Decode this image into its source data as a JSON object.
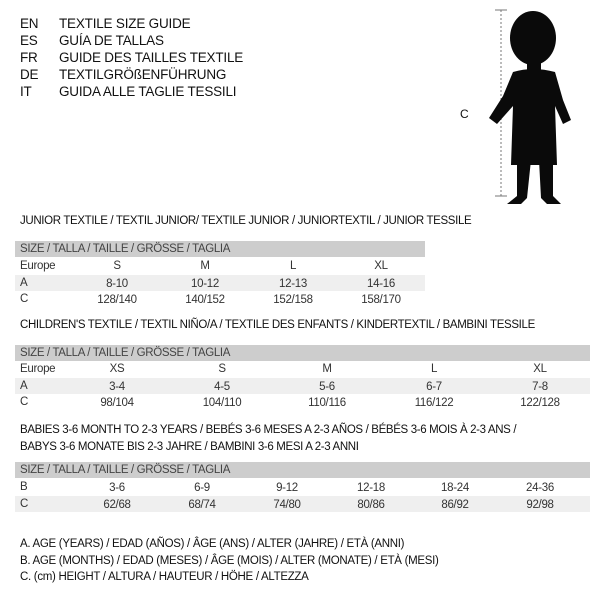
{
  "languages": [
    {
      "code": "EN",
      "text": "TEXTILE SIZE GUIDE"
    },
    {
      "code": "ES",
      "text": "GUÍA DE TALLAS"
    },
    {
      "code": "FR",
      "text": "GUIDE DES TAILLES TEXTILE"
    },
    {
      "code": "DE",
      "text": "TEXTILGRÖßENFÜHRUNG"
    },
    {
      "code": "IT",
      "text": "GUIDA ALLE TAGLIE TESSILI"
    }
  ],
  "figure": {
    "label": "C",
    "icon": "child-silhouette-icon"
  },
  "junior": {
    "title": "JUNIOR TEXTILE / TEXTIL JUNIOR/ TEXTILE JUNIOR / JUNIORTEXTIL / JUNIOR TESSILE",
    "header": "SIZE / TALLA / TAILLE / GRÖSSE / TAGLIA",
    "rows": [
      {
        "label": "Europe",
        "values": [
          "S",
          "M",
          "L",
          "XL"
        ]
      },
      {
        "label": "A",
        "values": [
          "8-10",
          "10-12",
          "12-13",
          "14-16"
        ]
      },
      {
        "label": "C",
        "values": [
          "128/140",
          "140/152",
          "152/158",
          "158/170"
        ]
      }
    ]
  },
  "children": {
    "title": "CHILDREN'S TEXTILE / TEXTIL NIÑO/A / TEXTILE DES ENFANTS / KINDERTEXTIL / BAMBINI TESSILE",
    "header": "SIZE / TALLA / TAILLE / GRÖSSE / TAGLIA",
    "rows": [
      {
        "label": "Europe",
        "values": [
          "XS",
          "S",
          "M",
          "L",
          "XL"
        ]
      },
      {
        "label": "A",
        "values": [
          "3-4",
          "4-5",
          "5-6",
          "6-7",
          "7-8"
        ]
      },
      {
        "label": "C",
        "values": [
          "98/104",
          "104/110",
          "110/116",
          "116/122",
          "122/128"
        ]
      }
    ]
  },
  "babies": {
    "title_line1": "BABIES 3-6 MONTH TO 2-3 YEARS / BEBÉS 3-6 MESES A 2-3 AÑOS / BÉBÉS 3-6 MOIS À 2-3 ANS /",
    "title_line2": "BABYS 3-6 MONATE BIS 2-3 JAHRE / BAMBINI 3-6 MESI A 2-3 ANNI",
    "header": "SIZE / TALLA / TAILLE / GRÖSSE / TAGLIA",
    "rows": [
      {
        "label": "B",
        "values": [
          "3-6",
          "6-9",
          "9-12",
          "12-18",
          "18-24",
          "24-36"
        ]
      },
      {
        "label": "C",
        "values": [
          "62/68",
          "68/74",
          "74/80",
          "80/86",
          "86/92",
          "92/98"
        ]
      }
    ]
  },
  "legend": [
    "A. AGE (YEARS) / EDAD (AÑOS) / ÂGE (ANS) / ALTER (JAHRE) / ETÀ (ANNI)",
    "B. AGE (MONTHS) / EDAD (MESES) / ÂGE (MOIS) / ALTER (MONATE) / ETÀ (MESI)",
    "C. (cm) HEIGHT / ALTURA / HAUTEUR / HÖHE / ALTEZZA"
  ]
}
